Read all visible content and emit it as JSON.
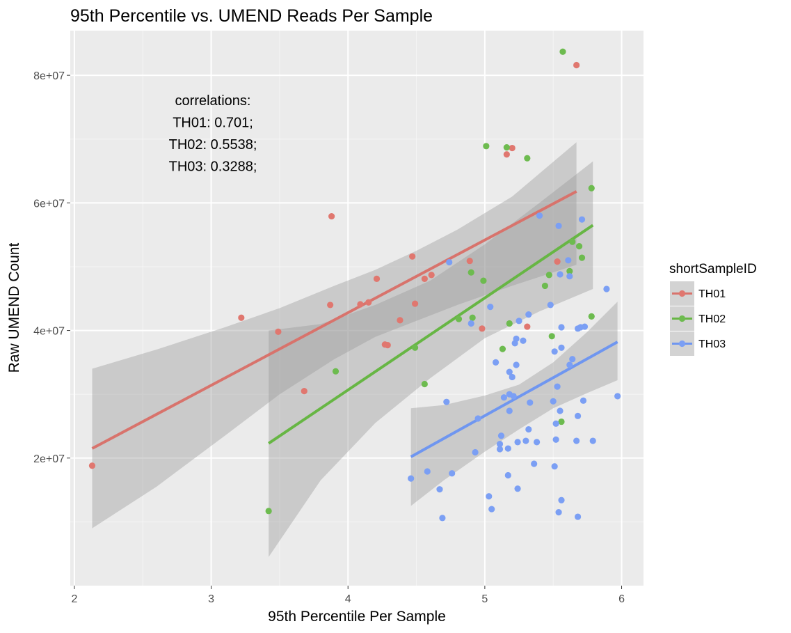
{
  "chart_data": {
    "type": "scatter",
    "title": "95th Percentile vs. UMEND Reads Per Sample",
    "xlabel": "95th Percentile Per Sample",
    "ylabel": "Raw UMEND Count",
    "xlim": [
      1.97,
      6.16
    ],
    "ylim": [
      0,
      87000000
    ],
    "x_ticks": [
      2,
      3,
      4,
      5,
      6
    ],
    "x_tick_labels": [
      "2",
      "3",
      "4",
      "5",
      "6"
    ],
    "y_ticks": [
      20000000,
      40000000,
      60000000,
      80000000
    ],
    "y_tick_labels": [
      "2e+07",
      "4e+07",
      "6e+07",
      "8e+07"
    ],
    "grid": true,
    "legend_position": "right",
    "legend_title": "shortSampleID",
    "annotation": [
      "correlations:",
      "TH01: 0.701;",
      "TH02: 0.5538;",
      "TH03: 0.3288;"
    ],
    "series": [
      {
        "name": "TH01",
        "color": "#e0776f",
        "line_color": "#d8736c",
        "points": [
          [
            2.13,
            18800000
          ],
          [
            3.22,
            42000000
          ],
          [
            3.49,
            39800000
          ],
          [
            3.68,
            30500000
          ],
          [
            3.87,
            44000000
          ],
          [
            3.88,
            57900000
          ],
          [
            4.09,
            44100000
          ],
          [
            4.15,
            44400000
          ],
          [
            4.21,
            48100000
          ],
          [
            4.27,
            37800000
          ],
          [
            4.29,
            37700000
          ],
          [
            4.38,
            41600000
          ],
          [
            4.47,
            51600000
          ],
          [
            4.49,
            44200000
          ],
          [
            4.56,
            48100000
          ],
          [
            4.61,
            48700000
          ],
          [
            4.89,
            50900000
          ],
          [
            4.98,
            40300000
          ],
          [
            5.16,
            67600000
          ],
          [
            5.2,
            68600000
          ],
          [
            5.31,
            40600000
          ],
          [
            5.53,
            50800000
          ],
          [
            5.67,
            81600000
          ]
        ],
        "fit": {
          "x": [
            2.13,
            5.67
          ],
          "y": [
            21500000,
            61800000
          ]
        },
        "ci": {
          "x": [
            2.13,
            2.6,
            3.1,
            3.5,
            3.9,
            4.2,
            4.5,
            4.8,
            5.2,
            5.67
          ],
          "lower": [
            9000000,
            15500000,
            23500000,
            30000000,
            35500000,
            39000000,
            41500000,
            44000000,
            47000000,
            50300000
          ],
          "upper": [
            34000000,
            37000000,
            40500000,
            43500000,
            47000000,
            49500000,
            52500000,
            55800000,
            61000000,
            69500000
          ]
        }
      },
      {
        "name": "TH02",
        "color": "#6dbb4f",
        "line_color": "#67b644",
        "points": [
          [
            3.42,
            11700000
          ],
          [
            3.91,
            33600000
          ],
          [
            4.49,
            37300000
          ],
          [
            4.56,
            31600000
          ],
          [
            4.81,
            41800000
          ],
          [
            4.9,
            49100000
          ],
          [
            4.91,
            42000000
          ],
          [
            4.99,
            47800000
          ],
          [
            5.01,
            68900000
          ],
          [
            5.13,
            37100000
          ],
          [
            5.16,
            68700000
          ],
          [
            5.18,
            41100000
          ],
          [
            5.31,
            67000000
          ],
          [
            5.44,
            47000000
          ],
          [
            5.47,
            48700000
          ],
          [
            5.49,
            39100000
          ],
          [
            5.56,
            25700000
          ],
          [
            5.57,
            83700000
          ],
          [
            5.62,
            49300000
          ],
          [
            5.64,
            53900000
          ],
          [
            5.69,
            53200000
          ],
          [
            5.71,
            51400000
          ],
          [
            5.78,
            62300000
          ],
          [
            5.78,
            42200000
          ]
        ],
        "fit": {
          "x": [
            3.42,
            5.79
          ],
          "y": [
            22300000,
            56500000
          ]
        },
        "ci": {
          "x": [
            3.42,
            3.8,
            4.2,
            4.6,
            5.0,
            5.4,
            5.79
          ],
          "lower": [
            4500000,
            16500000,
            25500000,
            32500000,
            38800000,
            43000000,
            46500000
          ],
          "upper": [
            40000000,
            41000000,
            44000000,
            47800000,
            53500000,
            60000000,
            66500000
          ]
        }
      },
      {
        "name": "TH03",
        "color": "#7b9ff4",
        "line_color": "#6f96f0",
        "points": [
          [
            4.46,
            16800000
          ],
          [
            4.58,
            17900000
          ],
          [
            4.67,
            15100000
          ],
          [
            4.69,
            10600000
          ],
          [
            4.72,
            28800000
          ],
          [
            4.74,
            50700000
          ],
          [
            4.76,
            17600000
          ],
          [
            4.9,
            41100000
          ],
          [
            4.93,
            20900000
          ],
          [
            4.95,
            26200000
          ],
          [
            5.03,
            14000000
          ],
          [
            5.04,
            43700000
          ],
          [
            5.05,
            12000000
          ],
          [
            5.08,
            35000000
          ],
          [
            5.11,
            22200000
          ],
          [
            5.11,
            21400000
          ],
          [
            5.12,
            23500000
          ],
          [
            5.14,
            29500000
          ],
          [
            5.17,
            17300000
          ],
          [
            5.17,
            21500000
          ],
          [
            5.18,
            33500000
          ],
          [
            5.18,
            30000000
          ],
          [
            5.18,
            27400000
          ],
          [
            5.2,
            32700000
          ],
          [
            5.21,
            29700000
          ],
          [
            5.22,
            38000000
          ],
          [
            5.23,
            34600000
          ],
          [
            5.23,
            38700000
          ],
          [
            5.24,
            15200000
          ],
          [
            5.24,
            22500000
          ],
          [
            5.25,
            41500000
          ],
          [
            5.28,
            38400000
          ],
          [
            5.3,
            22700000
          ],
          [
            5.32,
            24500000
          ],
          [
            5.32,
            42500000
          ],
          [
            5.33,
            28700000
          ],
          [
            5.36,
            19100000
          ],
          [
            5.38,
            22500000
          ],
          [
            5.4,
            58000000
          ],
          [
            5.48,
            44000000
          ],
          [
            5.5,
            28900000
          ],
          [
            5.51,
            18700000
          ],
          [
            5.51,
            36700000
          ],
          [
            5.52,
            25400000
          ],
          [
            5.52,
            22900000
          ],
          [
            5.53,
            31200000
          ],
          [
            5.54,
            56400000
          ],
          [
            5.54,
            11500000
          ],
          [
            5.55,
            27400000
          ],
          [
            5.55,
            48800000
          ],
          [
            5.56,
            40500000
          ],
          [
            5.56,
            13400000
          ],
          [
            5.56,
            37300000
          ],
          [
            5.61,
            51000000
          ],
          [
            5.62,
            34600000
          ],
          [
            5.62,
            48500000
          ],
          [
            5.64,
            35500000
          ],
          [
            5.67,
            22700000
          ],
          [
            5.68,
            26600000
          ],
          [
            5.68,
            40300000
          ],
          [
            5.68,
            10800000
          ],
          [
            5.7,
            40500000
          ],
          [
            5.71,
            57400000
          ],
          [
            5.72,
            29000000
          ],
          [
            5.73,
            40600000
          ],
          [
            5.79,
            22700000
          ],
          [
            5.89,
            46500000
          ],
          [
            5.97,
            29700000
          ]
        ],
        "fit": {
          "x": [
            4.46,
            5.97
          ],
          "y": [
            20200000,
            38200000
          ]
        },
        "ci": {
          "x": [
            4.46,
            4.7,
            5.0,
            5.25,
            5.5,
            5.75,
            5.97
          ],
          "lower": [
            12500000,
            16500000,
            21000000,
            24500000,
            27800000,
            30200000,
            32200000
          ],
          "upper": [
            27800000,
            28300000,
            29800000,
            31500000,
            35000000,
            39800000,
            44500000
          ]
        }
      }
    ]
  }
}
